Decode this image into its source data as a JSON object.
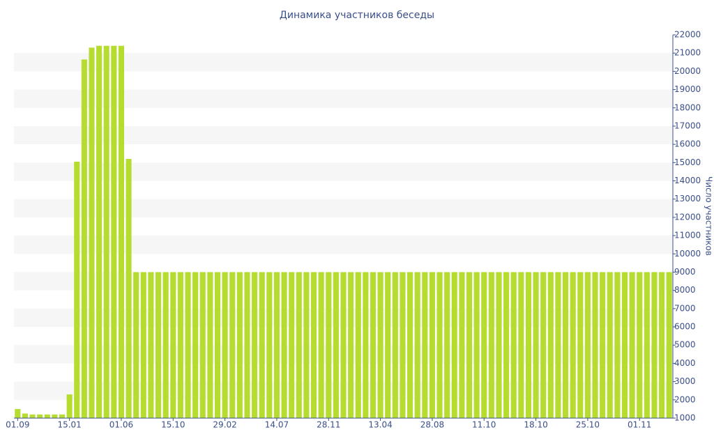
{
  "chart_data": {
    "type": "bar",
    "title": "Динамика участников беседы",
    "y_axis_label": "Число участников",
    "categories": [
      "01.09",
      null,
      null,
      null,
      null,
      null,
      null,
      "15.01",
      null,
      null,
      null,
      null,
      null,
      null,
      "01.06",
      null,
      null,
      null,
      null,
      null,
      null,
      "15.10",
      null,
      null,
      null,
      null,
      null,
      null,
      "29.02",
      null,
      null,
      null,
      null,
      null,
      null,
      "14.07",
      null,
      null,
      null,
      null,
      null,
      null,
      "28.11",
      null,
      null,
      null,
      null,
      null,
      null,
      "13.04",
      null,
      null,
      null,
      null,
      null,
      null,
      "28.08",
      null,
      null,
      null,
      null,
      null,
      null,
      "11.10",
      null,
      null,
      null,
      null,
      null,
      null,
      "18.10",
      null,
      null,
      null,
      null,
      null,
      null,
      "25.10",
      null,
      null,
      null,
      null,
      null,
      null,
      "01.11",
      null,
      null,
      null,
      null
    ],
    "values": [
      1500,
      1250,
      1200,
      1200,
      1200,
      1200,
      1200,
      2300,
      15050,
      20650,
      21300,
      21400,
      21400,
      21400,
      21400,
      15200,
      9000,
      9000,
      9000,
      9000,
      9000,
      9000,
      9000,
      9000,
      9000,
      9000,
      9000,
      9000,
      9000,
      9000,
      9000,
      9000,
      9000,
      9000,
      9000,
      9000,
      9000,
      9000,
      9000,
      9000,
      9000,
      9000,
      9000,
      9000,
      9000,
      9000,
      9000,
      9000,
      9000,
      9000,
      9000,
      9000,
      9000,
      9000,
      9000,
      9000,
      9000,
      9000,
      9000,
      9000,
      9000,
      9000,
      9000,
      9000,
      9000,
      9000,
      9000,
      9000,
      9000,
      9000,
      9000,
      9000,
      9000,
      9000,
      9000,
      9000,
      9000,
      9000,
      9000,
      9000,
      9000,
      9000,
      9000,
      9000,
      9000,
      9000,
      9000,
      9000,
      9000
    ],
    "color": "#b5dc2f",
    "ylim": [
      1000,
      22000
    ],
    "yticks": [
      1000,
      2000,
      3000,
      4000,
      5000,
      6000,
      7000,
      8000,
      9000,
      10000,
      11000,
      12000,
      13000,
      14000,
      15000,
      16000,
      17000,
      18000,
      19000,
      20000,
      21000,
      22000
    ],
    "y_axis_side": "right",
    "grid": "bands"
  }
}
